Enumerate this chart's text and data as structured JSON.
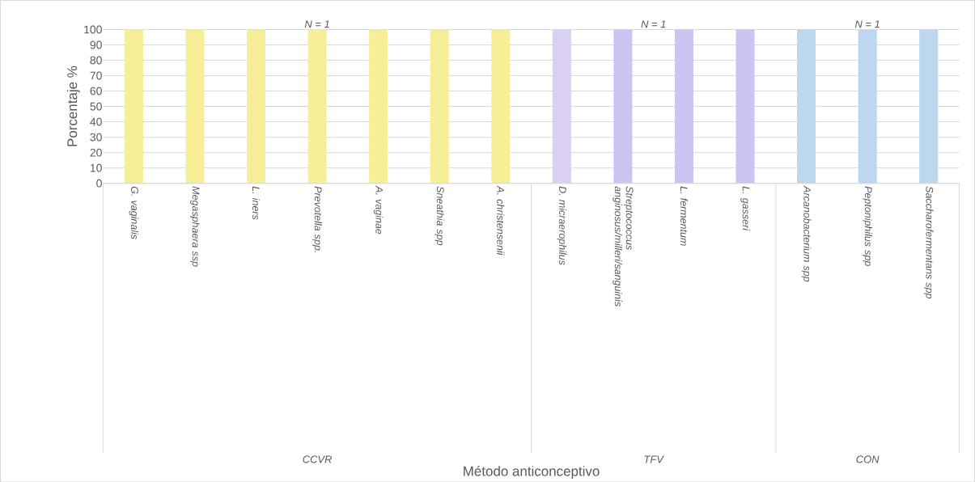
{
  "chart_data": {
    "type": "bar",
    "categories": [
      "G. vaginalis",
      "Megasphaera ssp",
      "L. iners",
      "Prevotella spp.",
      "A. vaginae",
      "Sneathia spp",
      "A. christensenii",
      "D. micraerophilus",
      "Streptococcus anginosus/milleri/sanguinis",
      "L. fermentum",
      "L. gasseri",
      "Arcanobacterium spp",
      "Peptoniphilus spp",
      "Saccharofermentans spp"
    ],
    "values": [
      100,
      100,
      100,
      100,
      100,
      100,
      100,
      100,
      100,
      100,
      100,
      100,
      100,
      100
    ],
    "colors": [
      "#f7ef98",
      "#f7ef98",
      "#f7ef98",
      "#f7ef98",
      "#f7ef98",
      "#f7ef98",
      "#f7ef98",
      "#d9d0f3",
      "#ccc3f3",
      "#ccc3f3",
      "#ccc3f3",
      "#bdd7ee",
      "#bdd7ee",
      "#bdd7ee"
    ],
    "ylim": [
      0,
      100
    ],
    "yticks": [
      0,
      10,
      20,
      30,
      40,
      50,
      60,
      70,
      80,
      90,
      100
    ],
    "grid": "y",
    "ylabel": "Porcentaje %",
    "annotations": [
      "N = 1",
      "N = 1",
      "N = 1",
      "CCVR",
      "TFV",
      "CON",
      "Método anticonceptivo"
    ]
  }
}
